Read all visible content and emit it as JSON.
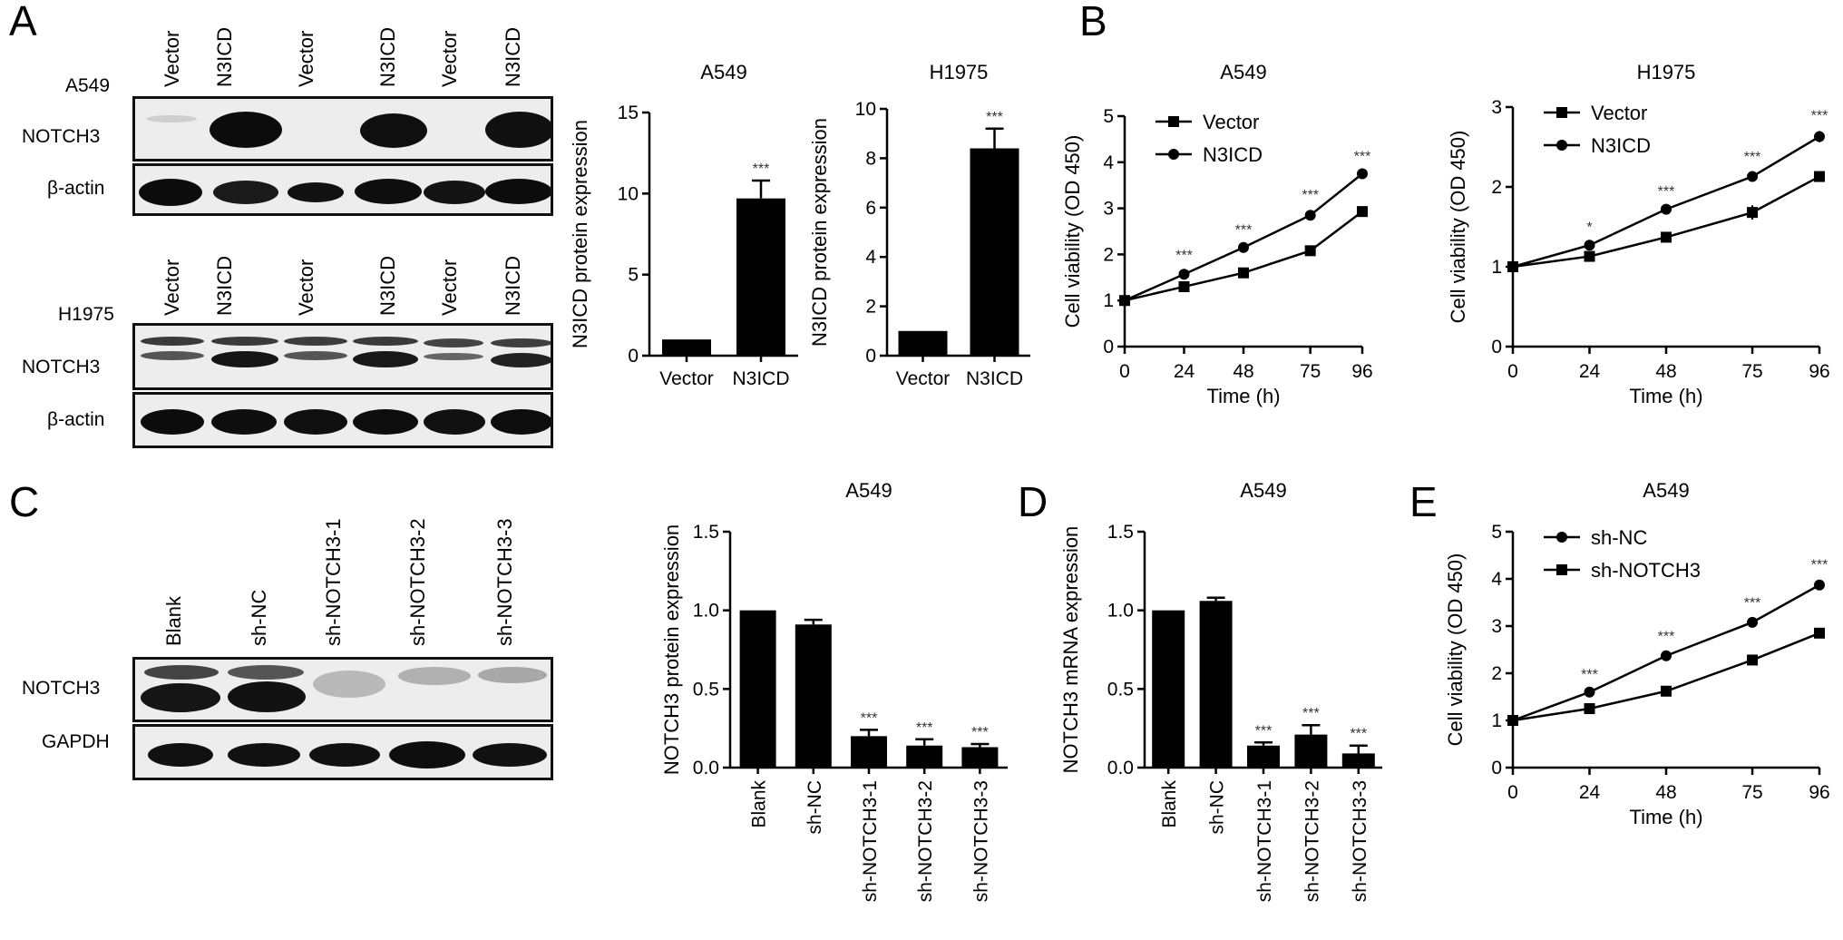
{
  "panels": {
    "A": "A",
    "B": "B",
    "C": "C",
    "D": "D",
    "E": "E"
  },
  "blot_A549": {
    "cell_line": "A549",
    "lanes": [
      "Vector",
      "N3ICD",
      "Vector",
      "N3ICD",
      "Vector",
      "N3ICD"
    ],
    "rows": [
      "NOTCH3",
      "β-actin"
    ]
  },
  "blot_H1975": {
    "cell_line": "H1975",
    "lanes": [
      "Vector",
      "N3ICD",
      "Vector",
      "N3ICD",
      "Vector",
      "N3ICD"
    ],
    "rows": [
      "NOTCH3",
      "β-actin"
    ]
  },
  "blot_C": {
    "lanes": [
      "Blank",
      "sh-NC",
      "sh-NOTCH3-1",
      "sh-NOTCH3-2",
      "sh-NOTCH3-3"
    ],
    "rows": [
      "NOTCH3",
      "GAPDH"
    ]
  },
  "chart_data": [
    {
      "id": "A-A549",
      "type": "bar",
      "title": "A549",
      "xlabel": "",
      "ylabel": "N3ICD protein expression",
      "categories": [
        "Vector",
        "N3ICD"
      ],
      "values": [
        1.0,
        9.7
      ],
      "errors": [
        0,
        1.1
      ],
      "significance": [
        "",
        "***"
      ],
      "ylim": [
        0,
        15
      ],
      "yticks": [
        0,
        5,
        10,
        15
      ],
      "ytick_labels": [
        "0",
        "5",
        "10",
        "15"
      ]
    },
    {
      "id": "A-H1975",
      "type": "bar",
      "title": "H1975",
      "xlabel": "",
      "ylabel": "N3ICD protein expression",
      "categories": [
        "Vector",
        "N3ICD"
      ],
      "values": [
        1.0,
        8.4
      ],
      "errors": [
        0,
        0.8
      ],
      "significance": [
        "",
        "***"
      ],
      "ylim": [
        0,
        10
      ],
      "yticks": [
        0,
        2,
        4,
        6,
        8,
        10
      ],
      "ytick_labels": [
        "0",
        "2",
        "4",
        "6",
        "8",
        "10"
      ]
    },
    {
      "id": "B-A549",
      "type": "line",
      "title": "A549",
      "xlabel": "Time (h)",
      "ylabel": "Cell viability (OD 450)",
      "x": [
        0,
        24,
        48,
        75,
        96
      ],
      "xtick_labels": [
        "0",
        "24",
        "48",
        "75",
        "96"
      ],
      "ylim": [
        0,
        5
      ],
      "yticks": [
        0,
        1,
        2,
        3,
        4,
        5
      ],
      "ytick_labels": [
        "0",
        "1",
        "2",
        "3",
        "4",
        "5"
      ],
      "series": [
        {
          "name": "Vector",
          "marker": "square",
          "values": [
            1.0,
            1.3,
            1.6,
            2.08,
            2.93
          ],
          "errors": [
            0.02,
            0.04,
            0.04,
            0.05,
            0.03
          ]
        },
        {
          "name": "N3ICD",
          "marker": "circle",
          "values": [
            1.0,
            1.57,
            2.15,
            2.85,
            3.75
          ],
          "errors": [
            0.02,
            0.07,
            0.04,
            0.1,
            0.04
          ]
        }
      ],
      "significance": [
        "",
        "***",
        "***",
        "***",
        "***"
      ],
      "legend": "top-left"
    },
    {
      "id": "B-H1975",
      "type": "line",
      "title": "H1975",
      "xlabel": "Time (h)",
      "ylabel": "Cell viability (OD 450)",
      "x": [
        0,
        24,
        48,
        75,
        96
      ],
      "xtick_labels": [
        "0",
        "24",
        "48",
        "75",
        "96"
      ],
      "ylim": [
        0,
        3
      ],
      "yticks": [
        0,
        1,
        2,
        3
      ],
      "ytick_labels": [
        "0",
        "1",
        "2",
        "3"
      ],
      "series": [
        {
          "name": "Vector",
          "marker": "square",
          "values": [
            1.0,
            1.13,
            1.37,
            1.68,
            2.13
          ],
          "errors": [
            0.02,
            0.05,
            0.03,
            0.09,
            0.05
          ]
        },
        {
          "name": "N3ICD",
          "marker": "circle",
          "values": [
            1.0,
            1.27,
            1.72,
            2.13,
            2.63
          ],
          "errors": [
            0.02,
            0.03,
            0.03,
            0.05,
            0.07
          ]
        }
      ],
      "significance": [
        "",
        "*",
        "***",
        "***",
        "***"
      ],
      "legend": "top-left"
    },
    {
      "id": "C-protein",
      "type": "bar",
      "title": "A549",
      "xlabel": "",
      "ylabel": "NOTCH3 protein expression",
      "categories": [
        "Blank",
        "sh-NC",
        "sh-NOTCH3-1",
        "sh-NOTCH3-2",
        "sh-NOTCH3-3"
      ],
      "values": [
        1.0,
        0.91,
        0.2,
        0.14,
        0.13
      ],
      "errors": [
        0,
        0.03,
        0.04,
        0.04,
        0.02
      ],
      "significance": [
        "",
        "",
        "***",
        "***",
        "***"
      ],
      "ylim": [
        0,
        1.5
      ],
      "yticks": [
        0,
        0.5,
        1.0,
        1.5
      ],
      "ytick_labels": [
        "0.0",
        "0.5",
        "1.0",
        "1.5"
      ]
    },
    {
      "id": "D-mRNA",
      "type": "bar",
      "title": "A549",
      "xlabel": "",
      "ylabel": "NOTCH3 mRNA expression",
      "categories": [
        "Blank",
        "sh-NC",
        "sh-NOTCH3-1",
        "sh-NOTCH3-2",
        "sh-NOTCH3-3"
      ],
      "values": [
        1.0,
        1.06,
        0.14,
        0.21,
        0.09
      ],
      "errors": [
        0,
        0.02,
        0.02,
        0.06,
        0.05
      ],
      "significance": [
        "",
        "",
        "***",
        "***",
        "***"
      ],
      "ylim": [
        0,
        1.5
      ],
      "yticks": [
        0,
        0.5,
        1.0,
        1.5
      ],
      "ytick_labels": [
        "0.0",
        "0.5",
        "1.0",
        "1.5"
      ]
    },
    {
      "id": "E-A549",
      "type": "line",
      "title": "A549",
      "xlabel": "Time (h)",
      "ylabel": "Cell viability (OD 450)",
      "x": [
        0,
        24,
        48,
        75,
        96
      ],
      "xtick_labels": [
        "0",
        "24",
        "48",
        "75",
        "96"
      ],
      "ylim": [
        0,
        5
      ],
      "yticks": [
        0,
        1,
        2,
        3,
        4,
        5
      ],
      "ytick_labels": [
        "0",
        "1",
        "2",
        "3",
        "4",
        "5"
      ],
      "series": [
        {
          "name": "sh-NC",
          "marker": "circle",
          "values": [
            1.0,
            1.6,
            2.37,
            3.08,
            3.87
          ],
          "errors": [
            0.02,
            0.04,
            0.08,
            0.08,
            0.1
          ]
        },
        {
          "name": "sh-NOTCH3",
          "marker": "square",
          "values": [
            1.0,
            1.25,
            1.62,
            2.28,
            2.85
          ],
          "errors": [
            0.02,
            0.04,
            0.04,
            0.05,
            0.07
          ]
        }
      ],
      "significance": [
        "",
        "***",
        "***",
        "***",
        "***"
      ],
      "legend": "top-left"
    }
  ]
}
